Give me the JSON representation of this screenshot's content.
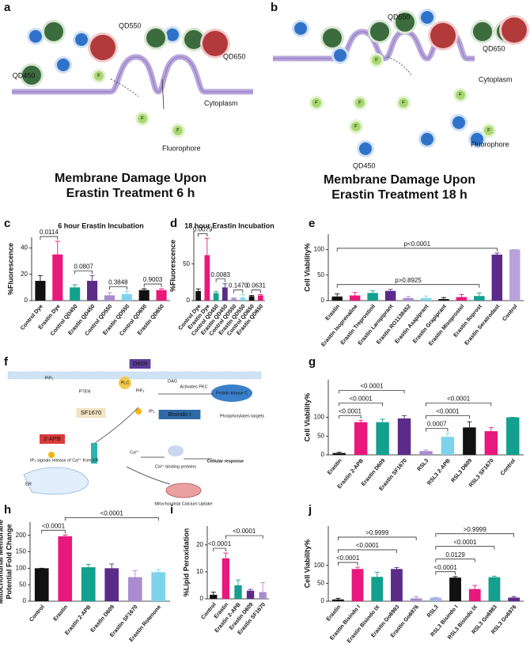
{
  "panel_labels": [
    "a",
    "b",
    "c",
    "d",
    "e",
    "f",
    "g",
    "h",
    "i",
    "j"
  ],
  "panel_a": {
    "labels": [
      "QD550",
      "QD650",
      "QD450",
      "Cytoplasm",
      "Fluorophore"
    ],
    "fluorophore_symbol": "F",
    "title": [
      "Membrane Damage Upon",
      "Erastin Treatment 6 h"
    ]
  },
  "panel_b": {
    "labels": [
      "QD550",
      "QD650",
      "Cytoplasm",
      "QD450",
      "Fluorophore"
    ],
    "fluorophore_symbol": "F",
    "title": [
      "Membrane Damage Upon",
      "Erastin Treatment 18 h"
    ]
  },
  "panel_f": {
    "labels": [
      "D609",
      "PIP₂",
      "PTEN",
      "PLC",
      "PIP₃",
      "DAG",
      "Activates PKC",
      "Protein kinase C",
      "SF1670",
      "IP₃",
      "Bisindo I",
      "Phosphorylates targets",
      "2-APB",
      "IP₃ signals release of Ca²⁺ from ER",
      "Ca²⁺",
      "Ca²⁺ binding proteins",
      "Cellular response",
      "ER",
      "Mitochondrial Calcium Uptake"
    ]
  },
  "chart_data": [
    {
      "type": "bar",
      "title": "6 hour Erastin Incubation",
      "ylabel": "%Fluorescence",
      "categories": [
        "Control Dye",
        "Erastin Dye",
        "Control QD450",
        "Erastin QD450",
        "Control QD550",
        "Erastin QD550",
        "Control QD650",
        "Erastin QD650"
      ],
      "values": [
        15,
        35,
        10,
        15,
        4,
        5,
        8,
        8
      ],
      "errors": [
        4,
        10,
        2,
        4,
        2,
        2,
        1,
        1
      ],
      "colors": [
        "#111111",
        "#e8187c",
        "#13a08f",
        "#5b2b8a",
        "#a88ccf",
        "#7dd3ec",
        "#111111",
        "#e8187c"
      ],
      "ylim": [
        0,
        48
      ],
      "yticks": [
        0,
        20,
        40
      ],
      "annotations": [
        {
          "text": "0.0114",
          "from": "Control Dye",
          "to": "Erastin Dye"
        },
        {
          "text": "0.0807",
          "from": "Control QD450",
          "to": "Erastin QD450"
        },
        {
          "text": "0.3848",
          "from": "Control QD550",
          "to": "Erastin QD550"
        },
        {
          "text": "0.9003",
          "from": "Control QD650",
          "to": "Erastin QD650"
        }
      ]
    },
    {
      "type": "bar",
      "title": "18 hour Erastin Incubation",
      "ylabel": "%Fluorescence",
      "categories": [
        "Control Dye",
        "Erastin Dye",
        "Control QD450",
        "Erastin QD450",
        "Control QD550",
        "Erastin QD550",
        "Control QD650",
        "Erastin QD650"
      ],
      "values": [
        13,
        62,
        10,
        18,
        3,
        4,
        6,
        7
      ],
      "errors": [
        3,
        23,
        2,
        5,
        1,
        4,
        1,
        1
      ],
      "colors": [
        "#111111",
        "#e8187c",
        "#13a08f",
        "#5b2b8a",
        "#a88ccf",
        "#7dd3ec",
        "#111111",
        "#e8187c"
      ],
      "ylim": [
        0,
        95
      ],
      "yticks": [
        0,
        50
      ],
      "annotations": [
        {
          "text": "0.0079",
          "from": "Control Dye",
          "to": "Erastin Dye"
        },
        {
          "text": "0.0083",
          "from": "Control QD450",
          "to": "Erastin QD450"
        },
        {
          "text": "0.1470",
          "from": "Control QD550",
          "to": "Erastin QD550"
        },
        {
          "text": "0.0631",
          "from": "Control QD650",
          "to": "Erastin QD650"
        }
      ]
    },
    {
      "type": "bar",
      "ylabel": "Cell Viability%",
      "categories": [
        "Erastin",
        "Erastin Isoprenaline",
        "Erastin Treprostinil",
        "Erastin Laropiprant",
        "Erastin RO1138452",
        "Erastin Asapiprant",
        "Erastin Grapiprant",
        "Erastin Misoprostol",
        "Erastin Iloprost",
        "Erastin Seratrodast",
        "Control"
      ],
      "values": [
        8,
        10,
        15,
        19,
        5,
        5,
        3,
        7,
        9,
        90,
        100
      ],
      "errors": [
        5,
        6,
        4,
        3,
        3,
        4,
        3,
        5,
        6,
        3,
        0
      ],
      "colors": [
        "#111111",
        "#e8187c",
        "#13a08f",
        "#5b2b8a",
        "#a88ccf",
        "#7dd3ec",
        "#111111",
        "#e8187c",
        "#13a08f",
        "#5b2b8a",
        "#b7a3d9"
      ],
      "ylim": [
        0,
        130
      ],
      "yticks": [
        0,
        50,
        100
      ],
      "annotations": [
        {
          "text": "p>0.8925",
          "from": "Erastin",
          "to": "Erastin Iloprost"
        },
        {
          "text": "p<0.0001",
          "from": "Erastin",
          "to": "Erastin Seratrodast"
        }
      ]
    },
    {
      "type": "bar",
      "ylabel": "Cell Viability%",
      "categories": [
        "Erastin",
        "Erastin 2-APB",
        "Erastin D609",
        "Erastin SF1670",
        "RSL3",
        "RSL3 2-APB",
        "RSL3 D609",
        "RSL3 SF1670",
        "Control"
      ],
      "values": [
        5,
        87,
        87,
        97,
        10,
        48,
        73,
        63,
        100
      ],
      "errors": [
        2,
        5,
        8,
        7,
        3,
        10,
        15,
        10,
        0
      ],
      "colors": [
        "#111111",
        "#e8187c",
        "#13a08f",
        "#5b2b8a",
        "#a88ccf",
        "#7dd3ec",
        "#111111",
        "#e8187c",
        "#13a08f"
      ],
      "ylim": [
        0,
        200
      ],
      "yticks": [
        0,
        50,
        100
      ],
      "annotations": [
        {
          "text": "<0.0001",
          "from": "Erastin",
          "to": "Erastin 2-APB"
        },
        {
          "text": "<0.0001",
          "from": "Erastin",
          "to": "Erastin D609"
        },
        {
          "text": "<0.0001",
          "from": "Erastin",
          "to": "Erastin SF1670"
        },
        {
          "text": "0.0007",
          "from": "RSL3",
          "to": "RSL3 2-APB"
        },
        {
          "text": "<0.0001",
          "from": "RSL3",
          "to": "RSL3 D609"
        },
        {
          "text": "<0.0001",
          "from": "RSL3",
          "to": "RSL3 SF1670"
        }
      ]
    },
    {
      "type": "bar",
      "ylabel": [
        "Mitochondrial Membrane",
        "Potential Fold Change"
      ],
      "categories": [
        "Control",
        "Erastin",
        "Erastin 2-APB",
        "Erastin D609",
        "Erastin SF1670",
        "Erastin Rotenone"
      ],
      "values": [
        100,
        197,
        103,
        100,
        73,
        88
      ],
      "errors": [
        0,
        4,
        9,
        13,
        20,
        8
      ],
      "colors": [
        "#111111",
        "#e8187c",
        "#13a08f",
        "#5b2b8a",
        "#a88ccf",
        "#7dd3ec"
      ],
      "ylim": [
        0,
        240
      ],
      "yticks": [
        0,
        50,
        100,
        150,
        200
      ],
      "annotations": [
        {
          "text": "<0.0001",
          "from": "Control",
          "to": "Erastin"
        },
        {
          "text": "<0.0001",
          "from": "Erastin",
          "to": "Erastin Rotenone"
        }
      ]
    },
    {
      "type": "bar",
      "ylabel": "%Lipid Peroxidation",
      "categories": [
        "Control",
        "Erastin",
        "Erastin 2-APB",
        "Erastin D609",
        "Erastin SF1670"
      ],
      "values": [
        1.5,
        15,
        5,
        3,
        2.5
      ],
      "errors": [
        1,
        2,
        2,
        0.5,
        3.5
      ],
      "colors": [
        "#111111",
        "#e8187c",
        "#13a08f",
        "#5b2b8a",
        "#a88ccf"
      ],
      "ylim": [
        0,
        27
      ],
      "yticks": [
        0,
        10,
        20
      ],
      "annotations": [
        {
          "text": "<0.0001",
          "from": "Control",
          "to": "Erastin"
        },
        {
          "text": "<0.0001",
          "from": "Erastin",
          "to": "Erastin SF1670"
        }
      ]
    },
    {
      "type": "bar",
      "ylabel": "Cell Viability%",
      "categories": [
        "Erastin",
        "Erastin Bisindo I",
        "Erastin Bisindo IX",
        "Erastin Go6983",
        "Erastin Go6976",
        "RSL3",
        "RSL3 Bisindo I",
        "RSL3 Bisindo IX",
        "RSL3 Go6983",
        "RSL3 Go6976"
      ],
      "values": [
        5,
        90,
        68,
        90,
        8,
        10,
        66,
        34,
        67,
        10
      ],
      "errors": [
        3,
        5,
        13,
        4,
        5,
        1,
        3,
        10,
        3,
        3
      ],
      "colors": [
        "#111111",
        "#e8187c",
        "#13a08f",
        "#5b2b8a",
        "#a88ccf",
        "#a8b4e6",
        "#111111",
        "#e8187c",
        "#13a08f",
        "#5b2b8a"
      ],
      "ylim": [
        0,
        210
      ],
      "yticks": [
        0,
        50,
        100
      ],
      "annotations": [
        {
          "text": "<0.0001",
          "from": "Erastin",
          "to": "Erastin Bisindo I"
        },
        {
          "text": "<0.0001",
          "from": "Erastin",
          "to": "Erastin Go6983"
        },
        {
          "text": ">0.9999",
          "from": "Erastin",
          "to": "Erastin Go6976"
        },
        {
          "text": "<0.0001",
          "from": "RSL3",
          "to": "RSL3 Bisindo I"
        },
        {
          "text": "0.0129",
          "from": "RSL3",
          "to": "RSL3 Bisindo IX"
        },
        {
          "text": "<0.0001",
          "from": "RSL3",
          "to": "RSL3 Go6983"
        },
        {
          "text": ">0.9999",
          "from": "RSL3",
          "to": "RSL3 Go6976"
        }
      ]
    }
  ]
}
